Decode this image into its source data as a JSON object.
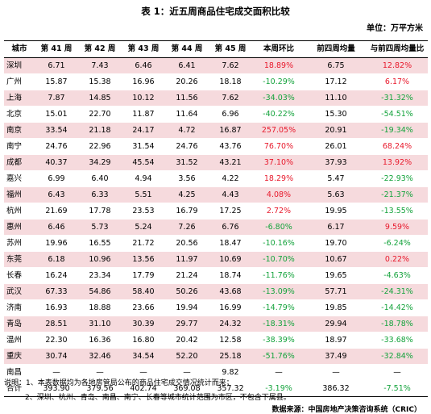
{
  "title": "表 1：近五周商品住宅成交面积比较",
  "unit": "单位：万平方米",
  "headers": [
    "城市",
    "第 41 周",
    "第 42 周",
    "第 43 周",
    "第 44 周",
    "第 45 周",
    "本周环比",
    "前四周均量",
    "与前四周均量比"
  ],
  "rows": [
    {
      "city": "深圳",
      "w41": "6.71",
      "w42": "7.43",
      "w43": "6.46",
      "w44": "6.41",
      "w45": "7.62",
      "wow": "18.89%",
      "avg4": "6.75",
      "vs4": "12.82%"
    },
    {
      "city": "广州",
      "w41": "15.87",
      "w42": "15.38",
      "w43": "16.96",
      "w44": "20.26",
      "w45": "18.18",
      "wow": "-10.29%",
      "avg4": "17.12",
      "vs4": "6.17%"
    },
    {
      "city": "上海",
      "w41": "7.87",
      "w42": "14.85",
      "w43": "10.12",
      "w44": "11.56",
      "w45": "7.62",
      "wow": "-34.03%",
      "avg4": "11.10",
      "vs4": "-31.32%"
    },
    {
      "city": "北京",
      "w41": "15.01",
      "w42": "22.70",
      "w43": "11.87",
      "w44": "11.64",
      "w45": "6.96",
      "wow": "-40.22%",
      "avg4": "15.30",
      "vs4": "-54.51%"
    },
    {
      "city": "南京",
      "w41": "33.54",
      "w42": "21.18",
      "w43": "24.17",
      "w44": "4.72",
      "w45": "16.87",
      "wow": "257.05%",
      "avg4": "20.91",
      "vs4": "-19.34%"
    },
    {
      "city": "南宁",
      "w41": "24.76",
      "w42": "22.96",
      "w43": "31.54",
      "w44": "24.76",
      "w45": "43.76",
      "wow": "76.70%",
      "avg4": "26.01",
      "vs4": "68.24%"
    },
    {
      "city": "成都",
      "w41": "40.37",
      "w42": "34.29",
      "w43": "45.54",
      "w44": "31.52",
      "w45": "43.21",
      "wow": "37.10%",
      "avg4": "37.93",
      "vs4": "13.92%"
    },
    {
      "city": "嘉兴",
      "w41": "6.99",
      "w42": "6.40",
      "w43": "4.94",
      "w44": "3.56",
      "w45": "4.22",
      "wow": "18.29%",
      "avg4": "5.47",
      "vs4": "-22.93%"
    },
    {
      "city": "福州",
      "w41": "6.43",
      "w42": "6.33",
      "w43": "5.51",
      "w44": "4.25",
      "w45": "4.43",
      "wow": "4.08%",
      "avg4": "5.63",
      "vs4": "-21.37%"
    },
    {
      "city": "杭州",
      "w41": "21.69",
      "w42": "17.78",
      "w43": "23.53",
      "w44": "16.79",
      "w45": "17.25",
      "wow": "2.72%",
      "avg4": "19.95",
      "vs4": "-13.55%"
    },
    {
      "city": "惠州",
      "w41": "6.46",
      "w42": "5.73",
      "w43": "5.24",
      "w44": "7.26",
      "w45": "6.76",
      "wow": "-6.80%",
      "avg4": "6.17",
      "vs4": "9.59%"
    },
    {
      "city": "苏州",
      "w41": "19.96",
      "w42": "16.55",
      "w43": "21.72",
      "w44": "20.56",
      "w45": "18.47",
      "wow": "-10.16%",
      "avg4": "19.70",
      "vs4": "-6.24%"
    },
    {
      "city": "东莞",
      "w41": "6.18",
      "w42": "10.96",
      "w43": "13.56",
      "w44": "11.97",
      "w45": "10.69",
      "wow": "-10.70%",
      "avg4": "10.67",
      "vs4": "0.22%"
    },
    {
      "city": "长春",
      "w41": "16.24",
      "w42": "23.34",
      "w43": "17.79",
      "w44": "21.24",
      "w45": "18.74",
      "wow": "-11.76%",
      "avg4": "19.65",
      "vs4": "-4.63%"
    },
    {
      "city": "武汉",
      "w41": "67.33",
      "w42": "54.86",
      "w43": "58.40",
      "w44": "50.26",
      "w45": "43.68",
      "wow": "-13.09%",
      "avg4": "57.71",
      "vs4": "-24.31%"
    },
    {
      "city": "济南",
      "w41": "16.93",
      "w42": "18.88",
      "w43": "23.66",
      "w44": "19.94",
      "w45": "16.99",
      "wow": "-14.79%",
      "avg4": "19.85",
      "vs4": "-14.42%"
    },
    {
      "city": "青岛",
      "w41": "28.51",
      "w42": "31.10",
      "w43": "30.39",
      "w44": "29.77",
      "w45": "24.32",
      "wow": "-18.31%",
      "avg4": "29.94",
      "vs4": "-18.78%"
    },
    {
      "city": "温州",
      "w41": "22.30",
      "w42": "16.36",
      "w43": "16.80",
      "w44": "20.42",
      "w45": "12.58",
      "wow": "-38.39%",
      "avg4": "18.97",
      "vs4": "-33.68%"
    },
    {
      "city": "重庆",
      "w41": "30.74",
      "w42": "32.46",
      "w43": "34.54",
      "w44": "52.20",
      "w45": "25.18",
      "wow": "-51.76%",
      "avg4": "37.49",
      "vs4": "-32.84%"
    },
    {
      "city": "南昌",
      "w41": "—",
      "w42": "—",
      "w43": "—",
      "w44": "—",
      "w45": "9.82",
      "wow": "—",
      "avg4": "—",
      "vs4": "—"
    },
    {
      "city": "合计",
      "w41": "393.90",
      "w42": "379.56",
      "w43": "402.74",
      "w44": "369.08",
      "w45": "357.32",
      "wow": "-3.19%",
      "avg4": "386.32",
      "vs4": "-7.51%"
    }
  ],
  "notes": {
    "note1": "说明：1、本表数据均为各地房管局公布的商品住宅成交情况统计而来；",
    "note2": "2、深圳、杭州、青岛、南昌、南宁、长春等城市统计范围为市区，不包含下属县。",
    "source": "数据来源：中国房地产决策咨询系统（CRIC）"
  },
  "colors": {
    "row_highlight": "#f6dadd",
    "positive": "#e8192c",
    "negative": "#14a33c"
  }
}
